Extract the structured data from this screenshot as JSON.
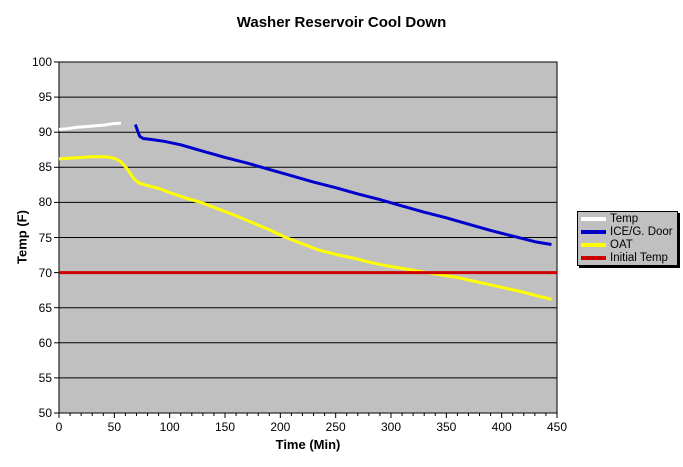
{
  "chart_data": {
    "type": "line",
    "title": "Washer Reservoir Cool Down",
    "xlabel": "Time (Min)",
    "ylabel": "Temp (F)",
    "xlim": [
      0,
      450
    ],
    "ylim": [
      50,
      100
    ],
    "x_ticks": [
      0,
      50,
      100,
      150,
      200,
      250,
      300,
      350,
      400,
      450
    ],
    "y_ticks": [
      100,
      95,
      90,
      85,
      80,
      75,
      70,
      65,
      60,
      55,
      50
    ],
    "x_minor_tick_step": 10,
    "grid": "horizontal-major",
    "legend_position": "right-outside",
    "colors": {
      "page_bg": "#FFFFFF",
      "plot_bg": "#C0C0C0",
      "grid": "#000000",
      "axis": "#000000"
    },
    "series": [
      {
        "name": "Temp",
        "color": "#FFFFFF",
        "points": [
          [
            0,
            90.4
          ],
          [
            8,
            90.5
          ],
          [
            16,
            90.7
          ],
          [
            24,
            90.8
          ],
          [
            32,
            90.9
          ],
          [
            40,
            91.0
          ],
          [
            48,
            91.2
          ],
          [
            56,
            91.3
          ]
        ]
      },
      {
        "name": "ICE/G. Door",
        "color": "#0000CC",
        "points": [
          [
            69,
            91.1
          ],
          [
            71,
            90.2
          ],
          [
            73,
            89.4
          ],
          [
            76,
            89.1
          ],
          [
            82,
            89.0
          ],
          [
            95,
            88.7
          ],
          [
            110,
            88.2
          ],
          [
            130,
            87.3
          ],
          [
            150,
            86.4
          ],
          [
            170,
            85.6
          ],
          [
            190,
            84.7
          ],
          [
            210,
            83.8
          ],
          [
            230,
            82.9
          ],
          [
            250,
            82.1
          ],
          [
            270,
            81.2
          ],
          [
            290,
            80.4
          ],
          [
            310,
            79.5
          ],
          [
            330,
            78.6
          ],
          [
            350,
            77.8
          ],
          [
            370,
            76.9
          ],
          [
            390,
            76.0
          ],
          [
            410,
            75.2
          ],
          [
            430,
            74.4
          ],
          [
            445,
            74.0
          ]
        ]
      },
      {
        "name": "OAT",
        "color": "#FFFF00",
        "points": [
          [
            0,
            86.2
          ],
          [
            10,
            86.3
          ],
          [
            20,
            86.4
          ],
          [
            30,
            86.5
          ],
          [
            42,
            86.5
          ],
          [
            50,
            86.3
          ],
          [
            56,
            85.8
          ],
          [
            62,
            84.7
          ],
          [
            68,
            83.3
          ],
          [
            73,
            82.7
          ],
          [
            80,
            82.4
          ],
          [
            90,
            82.0
          ],
          [
            100,
            81.4
          ],
          [
            115,
            80.6
          ],
          [
            130,
            79.9
          ],
          [
            145,
            79.0
          ],
          [
            160,
            78.1
          ],
          [
            175,
            77.1
          ],
          [
            190,
            76.1
          ],
          [
            205,
            75.0
          ],
          [
            220,
            74.1
          ],
          [
            235,
            73.2
          ],
          [
            250,
            72.6
          ],
          [
            265,
            72.1
          ],
          [
            280,
            71.5
          ],
          [
            295,
            71.0
          ],
          [
            310,
            70.6
          ],
          [
            325,
            70.2
          ],
          [
            340,
            69.8
          ],
          [
            360,
            69.3
          ],
          [
            380,
            68.6
          ],
          [
            400,
            67.9
          ],
          [
            420,
            67.2
          ],
          [
            432,
            66.7
          ],
          [
            445,
            66.2
          ]
        ]
      },
      {
        "name": "Initial Temp",
        "color": "#CC0000",
        "points": [
          [
            0,
            70
          ],
          [
            450,
            70
          ]
        ]
      }
    ]
  }
}
